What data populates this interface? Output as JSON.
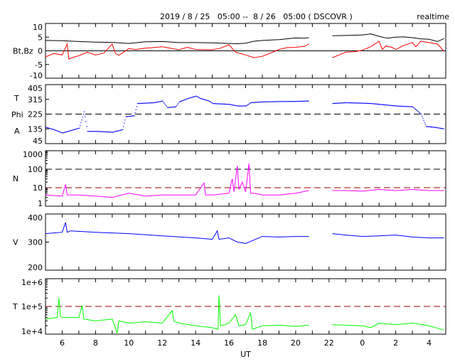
{
  "chart_data": [
    {
      "type": "line",
      "title": "2019 / 8 / 25   05:00 --  8 / 26   05:00 ( DSCOVR )",
      "mode_label": "realtime",
      "xlabel": "UT",
      "x_tick_labels": [
        "6",
        "8",
        "10",
        "12",
        "14",
        "16",
        "18",
        "20",
        "22",
        "0",
        "2",
        "4"
      ],
      "x_range_hours_from_0UT_day1": [
        5,
        29
      ],
      "panels": [
        {
          "id": "mag",
          "ylabel": "Bt,Bz",
          "scale": "linear",
          "ylim": [
            -10,
            10
          ],
          "yticks": [
            "10",
            "5",
            "0",
            "-5",
            "-10"
          ],
          "ref_lines": [
            {
              "y": 0,
              "style": "solid",
              "color": "#000000"
            }
          ],
          "series": [
            {
              "name": "Bt",
              "color": "#000000",
              "x": [
                5,
                6,
                7,
                8,
                9,
                10,
                11,
                12,
                13,
                14,
                15,
                16,
                16.5,
                17,
                17.5,
                18,
                19,
                20,
                20.5,
                20.8,
                null,
                22.2,
                23,
                24,
                24.5,
                25,
                25.5,
                26,
                26.5,
                27,
                27.5,
                28,
                28.5,
                28.9
              ],
              "y": [
                3.8,
                3.7,
                3.4,
                3.2,
                3.1,
                2.7,
                3.3,
                3.4,
                3.0,
                3.0,
                2.9,
                2.7,
                2.6,
                2.8,
                3.5,
                3.8,
                4.1,
                4.7,
                4.6,
                4.8,
                null,
                5.5,
                5.6,
                5.8,
                6.2,
                5.3,
                4.6,
                5.0,
                5.1,
                4.8,
                4.4,
                4.2,
                3.4,
                4.5
              ]
            },
            {
              "name": "Bz",
              "color": "#ff0000",
              "x": [
                5,
                5.5,
                6,
                6.3,
                6.4,
                6.6,
                7,
                7.5,
                8,
                8.5,
                9,
                9.2,
                9.4,
                10,
                10.4,
                11,
                12,
                13,
                13.5,
                14,
                15,
                15.5,
                16,
                16.4,
                16.6,
                17,
                17.5,
                18,
                18.5,
                19,
                19.5,
                20,
                20.5,
                20.8,
                null,
                22.2,
                22.6,
                23,
                23.5,
                24,
                24.5,
                25,
                25.2,
                25.4,
                25.8,
                26,
                26.5,
                27,
                27.2,
                27.5,
                28,
                28.5,
                28.9
              ],
              "y": [
                -2.2,
                -1.0,
                -1.5,
                2.5,
                -3.0,
                -2.5,
                -1.8,
                -0.5,
                -1.5,
                -0.8,
                2.5,
                -1.0,
                -1.6,
                0.8,
                0.5,
                1.0,
                1.5,
                0.4,
                1.3,
                0.5,
                0.4,
                1.0,
                2.2,
                -0.5,
                -0.8,
                -1.5,
                -2.5,
                -2.0,
                -0.8,
                0.5,
                1.2,
                1.3,
                1.6,
                2.5,
                null,
                -2.5,
                -1.5,
                -0.5,
                -0.3,
                0.2,
                1.5,
                3.5,
                0.5,
                1.8,
                1.2,
                0.5,
                2.0,
                3.0,
                1.5,
                3.5,
                3.0,
                2.5,
                -0.2
              ]
            }
          ]
        },
        {
          "id": "phi",
          "ylabel_parts": [
            "T",
            "Phi",
            "A"
          ],
          "scale": "linear",
          "ylim": [
            45,
            405
          ],
          "yticks": [
            "405",
            "315",
            "225",
            "135",
            "45"
          ],
          "ref_lines": [
            {
              "y": 225,
              "style": "dashed",
              "color": "#000000"
            }
          ],
          "series": [
            {
              "name": "Phi",
              "color": "#0000ff",
              "style": "dots",
              "x": [
                5,
                5.5,
                6,
                6.5,
                7,
                7.3,
                7.5,
                8,
                9,
                9.6,
                9.8,
                10.3,
                10.5,
                11.5,
                12,
                12.3,
                12.8,
                13,
                13.5,
                14,
                14.3,
                14.8,
                15,
                16,
                16.5,
                17,
                17.3,
                18,
                19,
                20,
                20.8,
                null,
                22.2,
                23,
                24,
                24.5,
                25,
                26,
                27,
                27.5,
                27.8,
                28.3,
                28.9
              ],
              "y": [
                145,
                130,
                110,
                125,
                140,
                240,
                120,
                120,
                115,
                130,
                210,
                215,
                290,
                295,
                305,
                265,
                270,
                300,
                320,
                335,
                320,
                305,
                290,
                285,
                275,
                275,
                295,
                300,
                302,
                303,
                305,
                null,
                290,
                295,
                292,
                290,
                285,
                275,
                270,
                225,
                150,
                145,
                135
              ]
            }
          ]
        },
        {
          "id": "density",
          "ylabel": "N",
          "scale": "log",
          "ylim": [
            1,
            1000
          ],
          "yticks": [
            "1000",
            "100",
            "10",
            "1"
          ],
          "ref_lines": [
            {
              "y": 100,
              "style": "dashed",
              "color": "#000000"
            },
            {
              "y": 10,
              "style": "dashed",
              "color": "#990000"
            }
          ],
          "series": [
            {
              "name": "N",
              "color": "#ff00ff",
              "x": [
                5,
                6,
                6.2,
                6.3,
                7,
                8,
                9,
                10,
                11,
                12,
                13,
                14,
                14.5,
                14.6,
                15,
                16,
                16.2,
                16.3,
                16.5,
                16.6,
                16.8,
                17,
                17.2,
                17.3,
                17.5,
                18,
                19,
                20,
                20.8,
                null,
                22.2,
                23,
                24,
                25,
                26,
                27,
                28,
                28.9
              ],
              "y": [
                4,
                3.5,
                15,
                4,
                4,
                3.5,
                3,
                5,
                3.5,
                4,
                4,
                4,
                18,
                4,
                4,
                5,
                30,
                6,
                150,
                8,
                20,
                6,
                200,
                5,
                5,
                4,
                4,
                5,
                7,
                null,
                7,
                7,
                6.5,
                8,
                7,
                8,
                7,
                7
              ]
            }
          ]
        },
        {
          "id": "speed",
          "ylabel": "V",
          "scale": "linear",
          "ylim": [
            200,
            400
          ],
          "yticks": [
            "400",
            "300",
            "200"
          ],
          "ref_lines": [],
          "series": [
            {
              "name": "V",
              "color": "#0000ff",
              "x": [
                5,
                6,
                6.2,
                6.3,
                6.5,
                8,
                10,
                12,
                14,
                15,
                15.3,
                15.4,
                16,
                16.5,
                17,
                18,
                19,
                20,
                20.8,
                null,
                22.2,
                23,
                24,
                25,
                26,
                27,
                28,
                28.9
              ],
              "y": [
                330,
                335,
                370,
                335,
                340,
                335,
                330,
                322,
                315,
                310,
                340,
                310,
                315,
                300,
                295,
                320,
                318,
                320,
                320,
                null,
                330,
                325,
                320,
                322,
                325,
                318,
                315,
                315
              ]
            }
          ]
        },
        {
          "id": "temperature",
          "ylabel": "T",
          "scale": "log",
          "ylim": [
            10000,
            1000000
          ],
          "yticks": [
            "1e+6",
            "1e+5",
            "1e+4"
          ],
          "ref_lines": [
            {
              "y": 100000,
              "style": "dashed",
              "color": "#990000"
            }
          ],
          "series": [
            {
              "name": "T",
              "color": "#00ff00",
              "x": [
                5,
                5.7,
                5.8,
                5.9,
                6,
                7,
                7.2,
                7.3,
                8,
                9,
                9.3,
                9.4,
                10,
                11,
                12,
                12.6,
                12.7,
                13,
                14,
                15,
                15.35,
                15.4,
                15.5,
                16,
                16.4,
                16.6,
                17,
                17.3,
                17.4,
                18,
                19,
                20,
                20.8,
                null,
                22.2,
                23,
                24,
                24.5,
                25,
                26,
                27,
                28,
                28.9
              ],
              "y": [
                35000,
                40000,
                200000,
                45000,
                40000,
                40000,
                110000,
                35000,
                30000,
                35000,
                11000,
                30000,
                25000,
                28000,
                25000,
                70000,
                30000,
                25000,
                20000,
                17000,
                15000,
                250000,
                20000,
                25000,
                50000,
                20000,
                22000,
                60000,
                15000,
                20000,
                21000,
                19000,
                21000,
                null,
                22000,
                21000,
                20000,
                17000,
                25000,
                22000,
                25000,
                20000,
                14000
              ]
            }
          ]
        }
      ]
    }
  ]
}
